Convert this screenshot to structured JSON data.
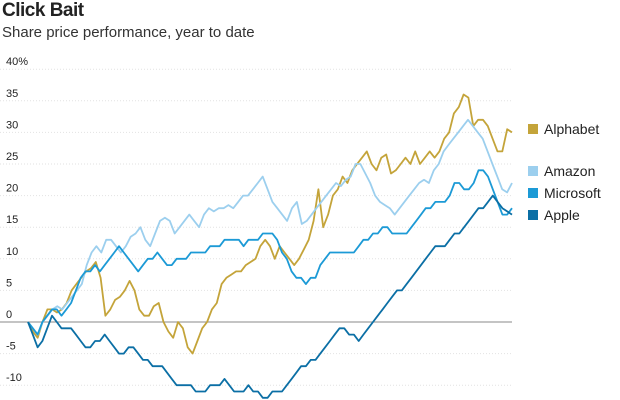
{
  "title": "Click Bait",
  "subtitle": "Share price performance, year to date",
  "chart_data": {
    "type": "line",
    "ylabel": "",
    "ylim": [
      -12,
      41
    ],
    "yticks": [
      {
        "value": 40,
        "label": "40%"
      },
      {
        "value": 35,
        "label": "35"
      },
      {
        "value": 30,
        "label": "30"
      },
      {
        "value": 25,
        "label": "25"
      },
      {
        "value": 20,
        "label": "20"
      },
      {
        "value": 15,
        "label": "15"
      },
      {
        "value": 10,
        "label": "10"
      },
      {
        "value": 5,
        "label": "5"
      },
      {
        "value": 0,
        "label": "0"
      },
      {
        "value": -5,
        "label": "-5"
      },
      {
        "value": -10,
        "label": "-10"
      }
    ],
    "grid": true,
    "legend_position": "right",
    "series": [
      {
        "name": "Alphabet",
        "color": "#c4a43a",
        "values": [
          0,
          -1.5,
          -2.5,
          0,
          2,
          2,
          1.5,
          2,
          3,
          5,
          6,
          7,
          8,
          8.5,
          9.5,
          7,
          1,
          2,
          3.5,
          4,
          5,
          6.5,
          5,
          2,
          1,
          1,
          2.5,
          3,
          0,
          -1.5,
          -2.5,
          0,
          -1,
          -4,
          -5,
          -3,
          -1,
          0,
          2,
          3,
          6,
          7,
          7.5,
          8,
          8,
          9,
          9.5,
          10,
          12,
          13,
          12,
          10,
          12,
          11,
          10,
          9,
          10,
          11.5,
          13,
          16,
          21,
          15,
          17,
          20,
          21,
          23,
          22,
          24,
          25,
          26,
          27,
          25,
          24,
          26,
          26.5,
          23.5,
          24,
          25,
          26,
          25,
          27,
          25,
          26,
          27,
          26,
          27,
          29,
          30,
          33,
          34,
          36,
          35.5,
          31,
          32,
          32,
          31,
          29,
          27,
          27,
          30.5,
          30
        ]
      },
      {
        "name": "Amazon",
        "color": "#9ccfee",
        "values": [
          0,
          -1,
          -2,
          0,
          1,
          2,
          2.5,
          2,
          3,
          4,
          5,
          6,
          9,
          11,
          12,
          11,
          13,
          13,
          12,
          11,
          12,
          13.5,
          14,
          15,
          13,
          12,
          14,
          16,
          16.5,
          16,
          14,
          15,
          16,
          17,
          16,
          15,
          17,
          18,
          17.5,
          18,
          18,
          18.5,
          18,
          19,
          20,
          20,
          21,
          22,
          23,
          21,
          19,
          18,
          17,
          16,
          18,
          19,
          15.5,
          16,
          17,
          18,
          19,
          20,
          21,
          22,
          21.5,
          22.5,
          23,
          25,
          25,
          23.5,
          22,
          20,
          19,
          18.5,
          18,
          17,
          18,
          19,
          20,
          21,
          22,
          22.5,
          22,
          24,
          25,
          27,
          28,
          29,
          30,
          31,
          32,
          31,
          30,
          29,
          27,
          25,
          23,
          21,
          20.5,
          22
        ]
      },
      {
        "name": "Microsoft",
        "color": "#1c9ad6",
        "values": [
          0,
          -1,
          -2,
          0,
          1,
          2,
          2,
          1,
          2,
          3,
          5,
          7,
          8,
          8,
          9,
          8,
          9,
          10,
          11,
          12,
          11,
          10,
          9,
          8,
          9,
          10,
          10,
          11,
          10,
          9,
          9,
          10,
          10,
          10,
          11,
          11,
          11,
          11,
          12,
          12,
          12,
          13,
          13,
          13,
          13,
          12,
          13,
          13,
          13,
          14,
          14,
          14,
          13,
          11,
          10,
          8,
          7,
          7,
          6,
          7,
          7,
          9,
          10,
          11,
          11,
          11,
          11,
          11,
          11,
          12,
          13,
          13,
          14,
          14,
          15,
          15,
          14,
          14,
          14,
          14,
          15,
          16,
          17,
          18,
          18,
          19,
          19,
          19,
          20,
          22,
          22,
          21,
          21,
          22,
          24,
          24,
          23,
          21,
          19,
          17,
          17,
          18
        ]
      },
      {
        "name": "Apple",
        "color": "#0b6fa5",
        "values": [
          0,
          -2,
          -4,
          -3,
          -1,
          1,
          0,
          -1,
          -1,
          -1,
          -2,
          -3,
          -4,
          -4,
          -3,
          -3,
          -2,
          -3,
          -4,
          -5,
          -5,
          -4,
          -4,
          -5,
          -6,
          -6,
          -7,
          -7,
          -7,
          -8,
          -9,
          -10,
          -10,
          -10,
          -10,
          -11,
          -11,
          -11,
          -10,
          -10,
          -10,
          -9,
          -10,
          -11,
          -11,
          -11,
          -10,
          -11,
          -11,
          -12,
          -12,
          -11,
          -11,
          -11,
          -10,
          -9,
          -8,
          -7,
          -7,
          -6,
          -6,
          -5,
          -4,
          -3,
          -2,
          -1,
          -1,
          -2,
          -2,
          -3,
          -2,
          -1,
          0,
          1,
          2,
          3,
          4,
          5,
          5,
          6,
          7,
          8,
          9,
          10,
          11,
          12,
          12,
          12,
          13,
          14,
          14,
          15,
          16,
          17,
          18,
          18,
          19,
          20,
          19,
          18,
          17.5,
          17
        ]
      }
    ]
  }
}
